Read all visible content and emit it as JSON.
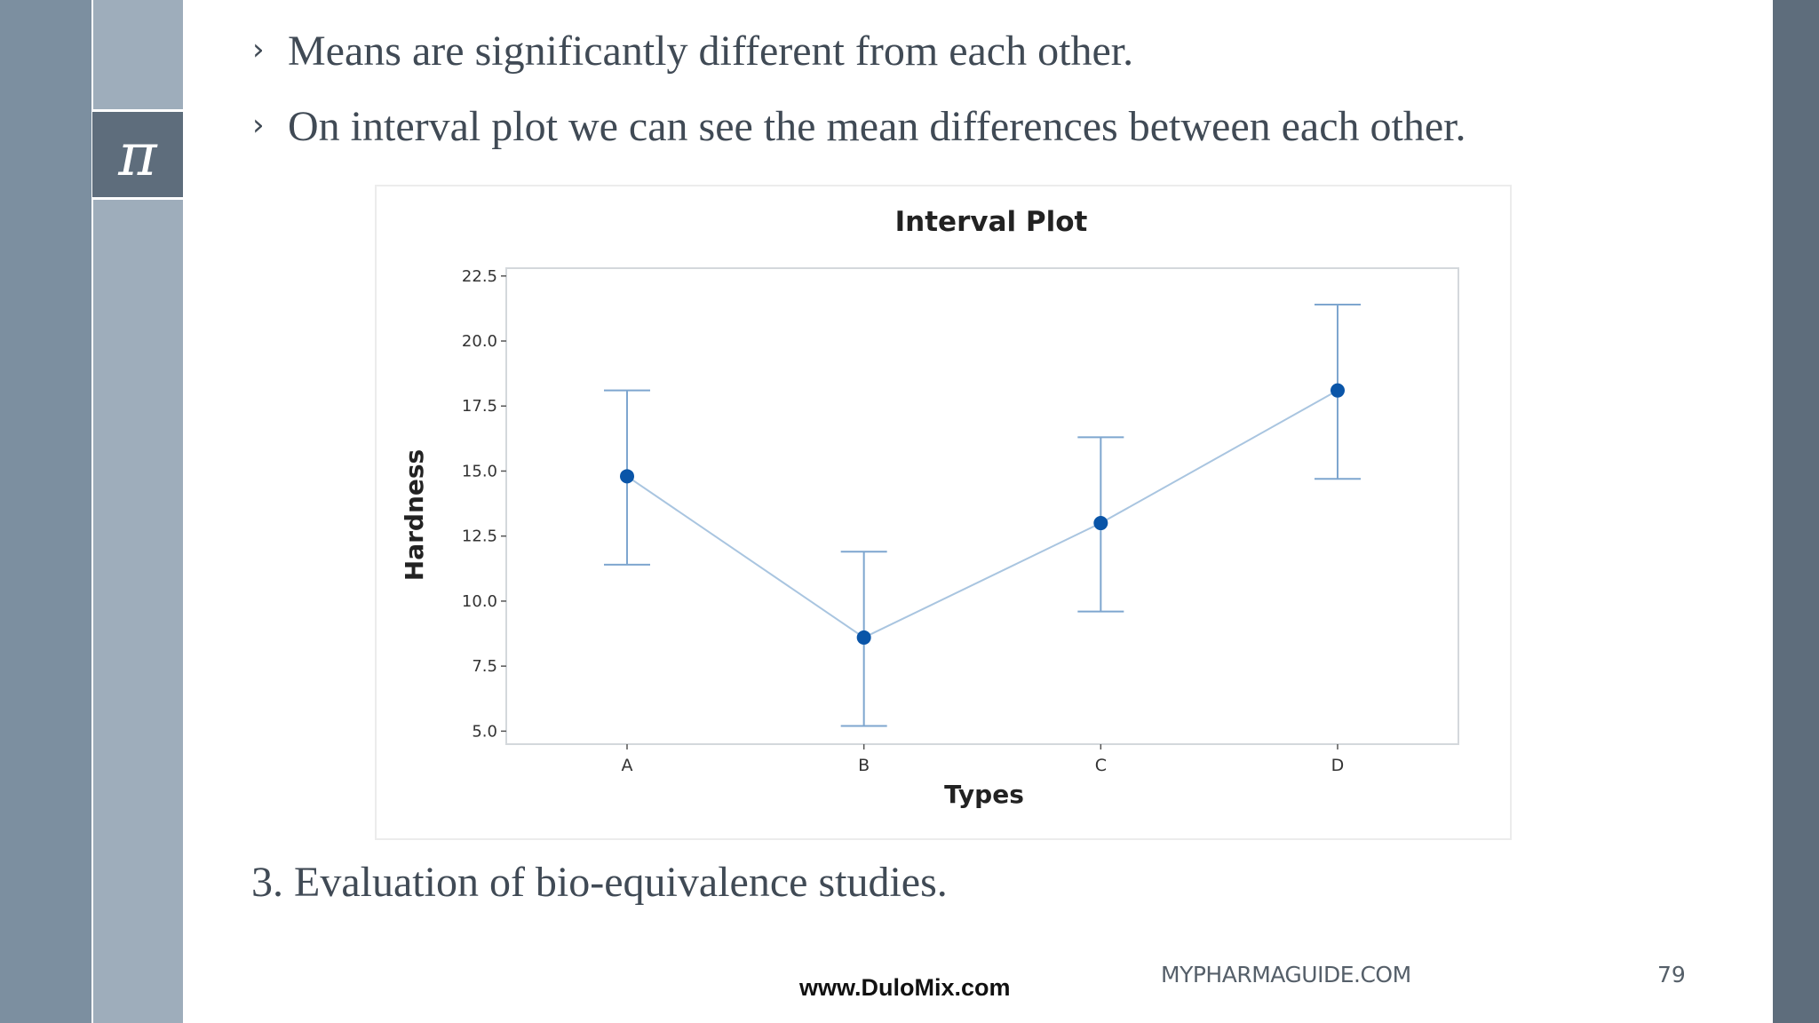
{
  "slide": {
    "logo_symbol": "π",
    "bullet_marker": "›",
    "bullets": [
      "Means are significantly different from each other.",
      "On interval plot we can see the mean differences between each other."
    ],
    "point_three": "3. Evaluation of bio-equivalence studies.",
    "footer": {
      "url": "www.DuloMix.com",
      "site": "MYPHARMAGUIDE.COM",
      "page_number": "79"
    }
  },
  "chart_data": {
    "type": "interval",
    "title": "Interval Plot",
    "xlabel": "Types",
    "ylabel": "Hardness",
    "categories": [
      "A",
      "B",
      "C",
      "D"
    ],
    "means": [
      14.8,
      8.6,
      13.0,
      18.1
    ],
    "lower": [
      11.4,
      5.2,
      9.6,
      14.7
    ],
    "upper": [
      18.1,
      11.9,
      16.3,
      21.4
    ],
    "ylim": [
      4.5,
      22.8
    ],
    "yticks": [
      5.0,
      7.5,
      10.0,
      12.5,
      15.0,
      17.5,
      20.0,
      22.5
    ],
    "ytick_labels": [
      "5.0",
      "7.5",
      "10.0",
      "12.5",
      "15.0",
      "17.5",
      "20.0",
      "22.5"
    ],
    "grid": false,
    "colors": {
      "line": "#a9c5e0",
      "point": "#0a55a8",
      "whisker": "#7ea6cf",
      "frame": "#d4d8dc"
    }
  }
}
